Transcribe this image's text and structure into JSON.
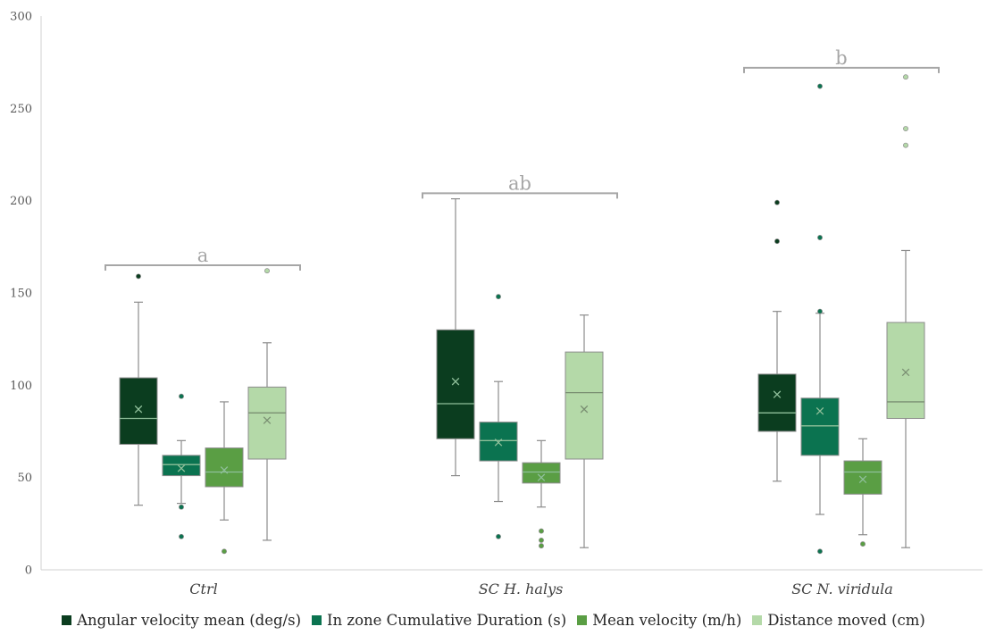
{
  "chart_data": {
    "type": "box",
    "categories": [
      "Ctrl",
      "SC H. halys",
      "SC N. viridula"
    ],
    "y_ticks": [
      "0",
      "50",
      "100",
      "150",
      "200",
      "250",
      "300"
    ],
    "ylim": [
      0,
      300
    ],
    "grid": false,
    "legend_position": "bottom",
    "series": [
      {
        "name": "Angular velocity mean (deg/s)",
        "color": "#0b3d1f",
        "boxes": [
          {
            "min": 35,
            "q1": 68,
            "median": 82,
            "q3": 104,
            "max": 145,
            "mean": 87,
            "outliers": [
              159
            ]
          },
          {
            "min": 51,
            "q1": 71,
            "median": 90,
            "q3": 130,
            "max": 201,
            "mean": 102,
            "outliers": []
          },
          {
            "min": 48,
            "q1": 75,
            "median": 85,
            "q3": 106,
            "max": 140,
            "mean": 95,
            "outliers": [
              178,
              199
            ]
          }
        ]
      },
      {
        "name": "In zone Cumulative Duration (s)",
        "color": "#0b7350",
        "boxes": [
          {
            "min": 36,
            "q1": 51,
            "median": 57,
            "q3": 62,
            "max": 70,
            "mean": 55,
            "outliers": [
              34,
              18,
              94
            ]
          },
          {
            "min": 37,
            "q1": 59,
            "median": 70,
            "q3": 80,
            "max": 102,
            "mean": 69,
            "outliers": [
              18,
              148
            ]
          },
          {
            "min": 30,
            "q1": 62,
            "median": 78,
            "q3": 93,
            "max": 139,
            "mean": 86,
            "outliers": [
              10,
              140,
              180,
              262
            ]
          }
        ]
      },
      {
        "name": "Mean velocity (m/h)",
        "color": "#5a9e44",
        "boxes": [
          {
            "min": 27,
            "q1": 45,
            "median": 53,
            "q3": 66,
            "max": 91,
            "mean": 54,
            "outliers": [
              10
            ]
          },
          {
            "min": 34,
            "q1": 47,
            "median": 53,
            "q3": 58,
            "max": 70,
            "mean": 50,
            "outliers": [
              21,
              16,
              13
            ]
          },
          {
            "min": 19,
            "q1": 41,
            "median": 53,
            "q3": 59,
            "max": 71,
            "mean": 49,
            "outliers": [
              14
            ]
          }
        ]
      },
      {
        "name": "Distance moved (cm)",
        "color": "#b4d9a8",
        "boxes": [
          {
            "min": 16,
            "q1": 60,
            "median": 85,
            "q3": 99,
            "max": 123,
            "mean": 81,
            "outliers": [
              162
            ]
          },
          {
            "min": 12,
            "q1": 60,
            "median": 96,
            "q3": 118,
            "max": 138,
            "mean": 87,
            "outliers": []
          },
          {
            "min": 12,
            "q1": 82,
            "median": 91,
            "q3": 134,
            "max": 173,
            "mean": 107,
            "outliers": [
              230,
              239,
              267
            ]
          }
        ]
      }
    ],
    "annotations": [
      {
        "label": "a",
        "category": 0,
        "y": 165
      },
      {
        "label": "ab",
        "category": 1,
        "y": 204
      },
      {
        "label": "b",
        "category": 2,
        "y": 272
      }
    ]
  }
}
